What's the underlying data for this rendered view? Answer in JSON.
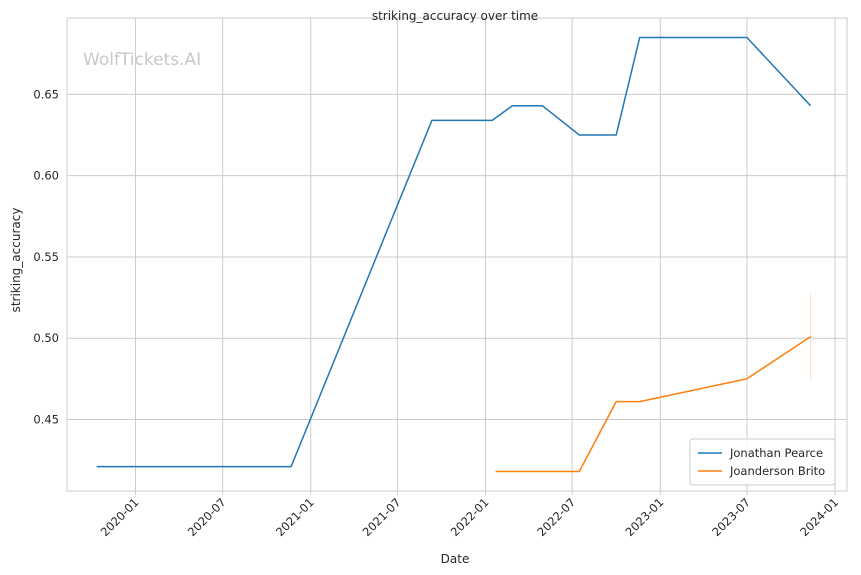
{
  "chart_data": {
    "type": "line",
    "title": "striking_accuracy over time",
    "xlabel": "Date",
    "ylabel": "striking_accuracy",
    "watermark": "WolfTickets.AI",
    "x_ticks": [
      "2020-01",
      "2020-07",
      "2021-01",
      "2021-07",
      "2022-01",
      "2022-07",
      "2023-01",
      "2023-07",
      "2024-01"
    ],
    "y_ticks": [
      "0.45",
      "0.50",
      "0.55",
      "0.60",
      "0.65"
    ],
    "ylim": [
      0.406,
      0.697
    ],
    "xlim": [
      "2019-08-11",
      "2024-01-26"
    ],
    "grid": true,
    "legend_position": "bottom-right",
    "series": [
      {
        "name": "Jonathan Pearce",
        "color": "#1f77b4",
        "points": [
          {
            "x": "2019-10-12",
            "y": 0.421
          },
          {
            "x": "2020-11-21",
            "y": 0.421
          },
          {
            "x": "2021-09-11",
            "y": 0.634
          },
          {
            "x": "2022-01-15",
            "y": 0.634
          },
          {
            "x": "2022-02-26",
            "y": 0.643
          },
          {
            "x": "2022-04-30",
            "y": 0.643
          },
          {
            "x": "2022-07-16",
            "y": 0.625
          },
          {
            "x": "2022-10-01",
            "y": 0.625
          },
          {
            "x": "2022-11-19",
            "y": 0.685
          },
          {
            "x": "2023-07-01",
            "y": 0.685
          },
          {
            "x": "2023-11-11",
            "y": 0.643
          }
        ]
      },
      {
        "name": "Joanderson Brito",
        "color": "#ff7f0e",
        "points": [
          {
            "x": "2022-01-22",
            "y": 0.418
          },
          {
            "x": "2022-07-16",
            "y": 0.418
          },
          {
            "x": "2022-10-01",
            "y": 0.461
          },
          {
            "x": "2022-11-19",
            "y": 0.461
          },
          {
            "x": "2023-07-01",
            "y": 0.475
          },
          {
            "x": "2023-11-11",
            "y": 0.501
          }
        ],
        "error_band": {
          "x": "2023-11-11",
          "low": 0.475,
          "high": 0.527
        }
      }
    ]
  }
}
